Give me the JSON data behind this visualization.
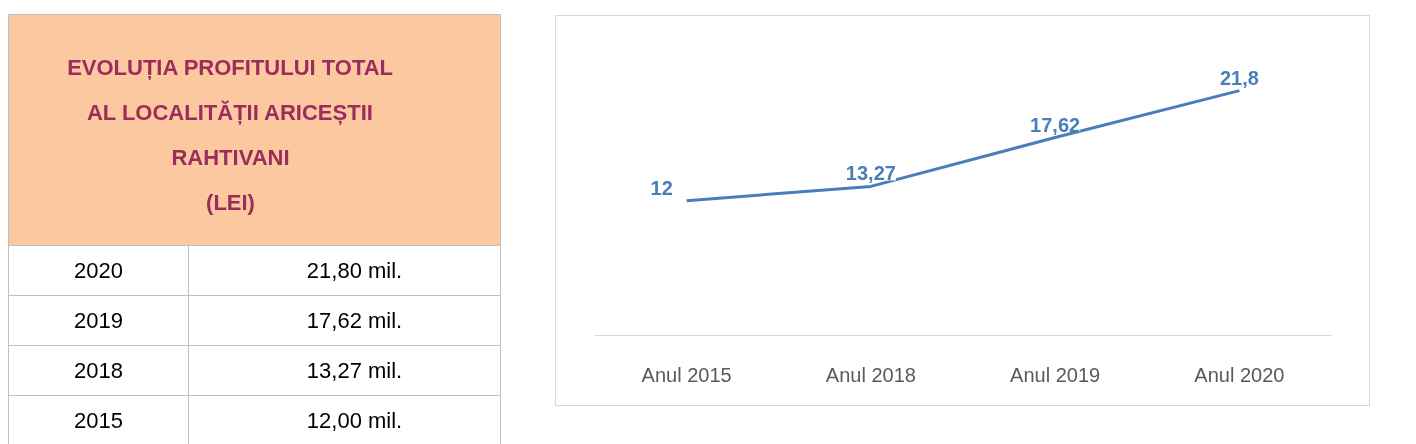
{
  "chart_data": [
    {
      "type": "other",
      "title": "EVOLUȚIA PROFITULUI TOTAL\nAL LOCALITĂȚII ARICEȘTII\nRAHTIVANI\n(LEI)",
      "categories": [
        "2020",
        "2019",
        "2018",
        "2015"
      ],
      "value_labels": [
        "21,80 mil.",
        "17,62 mil.",
        "13,27 mil.",
        "12,00 mil."
      ]
    },
    {
      "type": "line",
      "categories": [
        "Anul 2015",
        "Anul 2018",
        "Anul 2019",
        "Anul 2020"
      ],
      "series": [
        {
          "color": "#4a7ebb",
          "values": [
            12,
            13.27,
            17.62,
            21.8
          ],
          "value_labels": [
            "12",
            "13,27",
            "17,62",
            "21,8"
          ]
        }
      ],
      "grid": false,
      "marker": "none",
      "line_style": "solid"
    }
  ]
}
